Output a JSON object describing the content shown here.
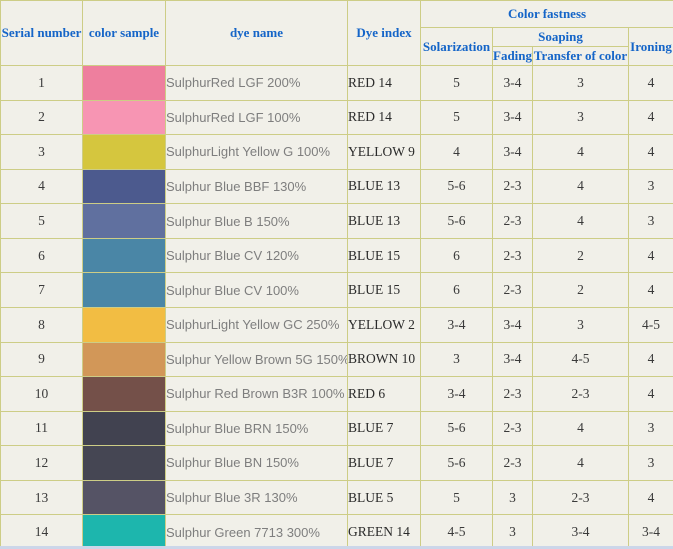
{
  "table": {
    "headers": {
      "serial_number": "Serial number",
      "color_sample": "color sample",
      "dye_name": "dye name",
      "dye_index": "Dye index",
      "color_fastness": "Color fastness",
      "solarization": "Solarization",
      "soaping": "Soaping",
      "fading": "Fading",
      "transfer_of_color": "Transfer of color",
      "ironing": "Ironing"
    },
    "rows": [
      {
        "serial": "1",
        "swatch_color": "#ee7f9e",
        "dye_name": "SulphurRed LGF 200%",
        "dye_index": "RED 14",
        "solarization": "5",
        "fading": "3-4",
        "transfer": "3",
        "ironing": "4"
      },
      {
        "serial": "2",
        "swatch_color": "#f795b3",
        "dye_name": "SulphurRed LGF 100%",
        "dye_index": "RED 14",
        "solarization": "5",
        "fading": "3-4",
        "transfer": "3",
        "ironing": "4"
      },
      {
        "serial": "3",
        "swatch_color": "#d5c63e",
        "dye_name": "SulphurLight Yellow G 100%",
        "dye_index": "YELLOW 9",
        "solarization": "4",
        "fading": "3-4",
        "transfer": "4",
        "ironing": "4"
      },
      {
        "serial": "4",
        "swatch_color": "#4c5a8e",
        "dye_name": "Sulphur Blue BBF 130%",
        "dye_index": "BLUE 13",
        "solarization": "5-6",
        "fading": "2-3",
        "transfer": "4",
        "ironing": "3"
      },
      {
        "serial": "5",
        "swatch_color": "#60709f",
        "dye_name": "Sulphur Blue B 150%",
        "dye_index": "BLUE 13",
        "solarization": "5-6",
        "fading": "2-3",
        "transfer": "4",
        "ironing": "3"
      },
      {
        "serial": "6",
        "swatch_color": "#4a86a6",
        "dye_name": "Sulphur Blue CV 120%",
        "dye_index": "BLUE 15",
        "solarization": "6",
        "fading": "2-3",
        "transfer": "2",
        "ironing": "4"
      },
      {
        "serial": "7",
        "swatch_color": "#4a86a6",
        "dye_name": "Sulphur Blue CV 100%",
        "dye_index": "BLUE 15",
        "solarization": "6",
        "fading": "2-3",
        "transfer": "2",
        "ironing": "4"
      },
      {
        "serial": "8",
        "swatch_color": "#f2bd43",
        "dye_name": "SulphurLight Yellow GC 250%",
        "dye_index": "YELLOW 2",
        "solarization": "3-4",
        "fading": "3-4",
        "transfer": "3",
        "ironing": "4-5"
      },
      {
        "serial": "9",
        "swatch_color": "#d29758",
        "dye_name": "Sulphur Yellow Brown 5G 150%",
        "dye_index": "BROWN 10",
        "solarization": "3",
        "fading": "3-4",
        "transfer": "4-5",
        "ironing": "4"
      },
      {
        "serial": "10",
        "swatch_color": "#745049",
        "dye_name": "Sulphur Red Brown B3R 100%",
        "dye_index": "RED 6",
        "solarization": "3-4",
        "fading": "2-3",
        "transfer": "2-3",
        "ironing": "4"
      },
      {
        "serial": "11",
        "swatch_color": "#414250",
        "dye_name": "Sulphur Blue BRN 150%",
        "dye_index": "BLUE 7",
        "solarization": "5-6",
        "fading": "2-3",
        "transfer": "4",
        "ironing": "3"
      },
      {
        "serial": "12",
        "swatch_color": "#454653",
        "dye_name": "Sulphur Blue BN 150%",
        "dye_index": "BLUE 7",
        "solarization": "5-6",
        "fading": "2-3",
        "transfer": "4",
        "ironing": "3"
      },
      {
        "serial": "13",
        "swatch_color": "#555365",
        "dye_name": "Sulphur Blue 3R 130%",
        "dye_index": "BLUE 5",
        "solarization": "5",
        "fading": "3",
        "transfer": "2-3",
        "ironing": "4"
      },
      {
        "serial": "14",
        "swatch_color": "#1db6ad",
        "dye_name": "Sulphur Green 7713 300%",
        "dye_index": "GREEN 14",
        "solarization": "4-5",
        "fading": "3",
        "transfer": "3-4",
        "ironing": "3-4"
      }
    ]
  },
  "colors": {
    "table_border": "#cdcd86",
    "cell_background": "#f1f0e9",
    "header_text": "#1565c8",
    "body_text": "#3a3a3a",
    "dye_name_text": "#7e7e7e",
    "bottom_bar": "#ccd6e9"
  }
}
